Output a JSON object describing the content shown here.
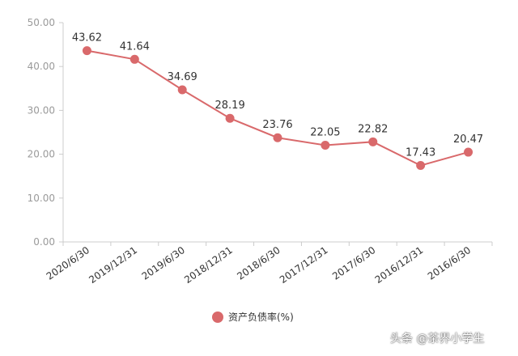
{
  "chart_data": {
    "type": "line",
    "categories": [
      "2020/6/30",
      "2019/12/31",
      "2019/6/30",
      "2018/12/31",
      "2018/6/30",
      "2017/12/31",
      "2017/6/30",
      "2016/12/31",
      "2016/6/30"
    ],
    "series": [
      {
        "name": "资产负债率(%)",
        "values": [
          43.62,
          41.64,
          34.69,
          28.19,
          23.76,
          22.05,
          22.82,
          17.43,
          20.47
        ],
        "labels": [
          "43.62",
          "41.64",
          "34.69",
          "28.19",
          "23.76",
          "22.05",
          "22.82",
          "17.43",
          "20.47"
        ],
        "color": "#d9696b"
      }
    ],
    "yticks": [
      "0.00",
      "10.00",
      "20.00",
      "30.00",
      "40.00",
      "50.00"
    ],
    "ylim": [
      0,
      50
    ],
    "grid": false,
    "legend_position": "bottom-center"
  },
  "watermark": "头条 @茶界小学生"
}
